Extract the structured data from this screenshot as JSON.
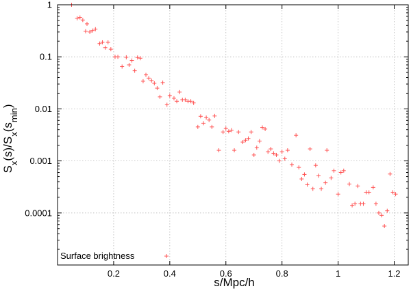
{
  "chart_data": {
    "type": "scatter",
    "xlabel": "s/Mpc/h",
    "ylabel": "S_x(s)/S_x(s_min)",
    "xlim": [
      0,
      1.25
    ],
    "ylim": [
      1e-05,
      1
    ],
    "yscale": "log",
    "grid": true,
    "legend_position": "bottom-left",
    "x_ticks": [
      {
        "value": 0.2,
        "label": "0.2"
      },
      {
        "value": 0.4,
        "label": "0.4"
      },
      {
        "value": 0.6,
        "label": "0.6"
      },
      {
        "value": 0.8,
        "label": "0.8"
      },
      {
        "value": 1.0,
        "label": "1"
      },
      {
        "value": 1.2,
        "label": "1.2"
      }
    ],
    "y_ticks": [
      {
        "value": 1,
        "label": "1"
      },
      {
        "value": 0.1,
        "label": "0.1"
      },
      {
        "value": 0.01,
        "label": "0.01"
      },
      {
        "value": 0.001,
        "label": "0.001"
      },
      {
        "value": 0.0001,
        "label": "0.0001"
      },
      {
        "value": 1e-05,
        "label": ""
      }
    ],
    "series": [
      {
        "name": "Surface brightness",
        "color": "#ff5050",
        "marker": "plus",
        "points": [
          [
            0.05,
            1.0
          ],
          [
            0.07,
            0.55
          ],
          [
            0.08,
            0.57
          ],
          [
            0.09,
            0.51
          ],
          [
            0.1,
            0.31
          ],
          [
            0.105,
            0.43
          ],
          [
            0.115,
            0.3
          ],
          [
            0.125,
            0.32
          ],
          [
            0.135,
            0.34
          ],
          [
            0.15,
            0.18
          ],
          [
            0.16,
            0.19
          ],
          [
            0.17,
            0.15
          ],
          [
            0.18,
            0.19
          ],
          [
            0.19,
            0.14
          ],
          [
            0.205,
            0.1
          ],
          [
            0.215,
            0.1
          ],
          [
            0.23,
            0.065
          ],
          [
            0.245,
            0.098
          ],
          [
            0.255,
            0.07
          ],
          [
            0.265,
            0.085
          ],
          [
            0.275,
            0.054
          ],
          [
            0.285,
            0.097
          ],
          [
            0.295,
            0.094
          ],
          [
            0.305,
            0.034
          ],
          [
            0.315,
            0.045
          ],
          [
            0.325,
            0.039
          ],
          [
            0.335,
            0.035
          ],
          [
            0.345,
            0.031
          ],
          [
            0.355,
            0.025
          ],
          [
            0.365,
            0.017
          ],
          [
            0.375,
            0.032
          ],
          [
            0.39,
            0.012
          ],
          [
            0.4,
            0.018
          ],
          [
            0.415,
            0.016
          ],
          [
            0.425,
            0.014
          ],
          [
            0.435,
            0.021
          ],
          [
            0.445,
            0.015
          ],
          [
            0.455,
            0.015
          ],
          [
            0.465,
            0.014
          ],
          [
            0.475,
            0.014
          ],
          [
            0.485,
            0.013
          ],
          [
            0.5,
            0.0045
          ],
          [
            0.51,
            0.0072
          ],
          [
            0.52,
            0.0053
          ],
          [
            0.53,
            0.0068
          ],
          [
            0.54,
            0.0061
          ],
          [
            0.55,
            0.0045
          ],
          [
            0.56,
            0.0073
          ],
          [
            0.575,
            0.0016
          ],
          [
            0.59,
            0.0036
          ],
          [
            0.6,
            0.0042
          ],
          [
            0.61,
            0.0037
          ],
          [
            0.62,
            0.0039
          ],
          [
            0.63,
            0.0016
          ],
          [
            0.645,
            0.0036
          ],
          [
            0.66,
            0.0023
          ],
          [
            0.67,
            0.0025
          ],
          [
            0.68,
            0.0027
          ],
          [
            0.69,
            0.0036
          ],
          [
            0.7,
            0.0013
          ],
          [
            0.71,
            0.0018
          ],
          [
            0.72,
            0.0024
          ],
          [
            0.73,
            0.0044
          ],
          [
            0.74,
            0.0041
          ],
          [
            0.75,
            0.0015
          ],
          [
            0.76,
            0.0017
          ],
          [
            0.77,
            0.0014
          ],
          [
            0.78,
            0.0013
          ],
          [
            0.79,
            0.001
          ],
          [
            0.8,
            0.0015
          ],
          [
            0.81,
            0.0011
          ],
          [
            0.82,
            0.0016
          ],
          [
            0.835,
            0.00085
          ],
          [
            0.85,
            0.0031
          ],
          [
            0.86,
            0.00075
          ],
          [
            0.87,
            0.00045
          ],
          [
            0.88,
            0.00055
          ],
          [
            0.89,
            0.00035
          ],
          [
            0.9,
            0.0017
          ],
          [
            0.91,
            0.00029
          ],
          [
            0.92,
            0.00082
          ],
          [
            0.93,
            0.00052
          ],
          [
            0.94,
            0.00029
          ],
          [
            0.955,
            0.00038
          ],
          [
            0.96,
            0.0016
          ],
          [
            0.975,
            0.00047
          ],
          [
            0.985,
            0.00065
          ],
          [
            1.0,
            0.00023
          ],
          [
            1.01,
            0.0006
          ],
          [
            1.02,
            0.00065
          ],
          [
            1.04,
            0.00036
          ],
          [
            1.05,
            0.00014
          ],
          [
            1.06,
            0.00015
          ],
          [
            1.07,
            0.00033
          ],
          [
            1.08,
            0.00015
          ],
          [
            1.09,
            0.00015
          ],
          [
            1.1,
            0.00025
          ],
          [
            1.11,
            0.00025
          ],
          [
            1.125,
            0.00031
          ],
          [
            1.135,
            0.00015
          ],
          [
            1.145,
            0.0001
          ],
          [
            1.155,
            9e-05
          ],
          [
            1.165,
            5.6e-05
          ],
          [
            1.175,
            0.00011
          ],
          [
            1.185,
            0.00056
          ],
          [
            1.195,
            0.00025
          ],
          [
            1.205,
            0.00023
          ]
        ]
      }
    ]
  }
}
